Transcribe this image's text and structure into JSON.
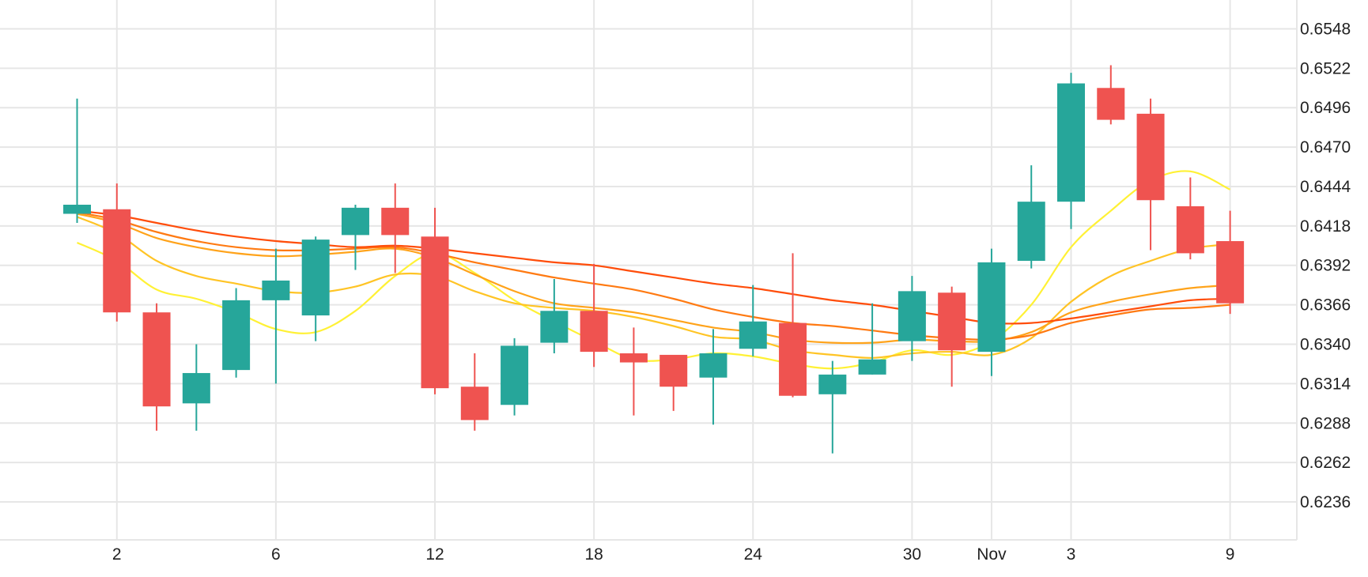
{
  "chart_data": {
    "type": "candlestick",
    "x_ticks": [
      "2",
      "6",
      "12",
      "18",
      "24",
      "30",
      "Nov",
      "3",
      "9"
    ],
    "y_ticks": [
      "0.6548",
      "0.6522",
      "0.6496",
      "0.6470",
      "0.6444",
      "0.6418",
      "0.6392",
      "0.6366",
      "0.6340",
      "0.6314",
      "0.6288",
      "0.6262",
      "0.6236"
    ],
    "ylim": [
      0.6211,
      0.6567
    ],
    "grid": true,
    "colors": {
      "up": "#26a69a",
      "down": "#ef5350",
      "grid": "#e6e6e6"
    },
    "candles": [
      {
        "o": 0.6426,
        "h": 0.6502,
        "l": 0.642,
        "c": 0.6432
      },
      {
        "o": 0.6429,
        "h": 0.6446,
        "l": 0.6355,
        "c": 0.6361
      },
      {
        "o": 0.6361,
        "h": 0.6367,
        "l": 0.6283,
        "c": 0.6299
      },
      {
        "o": 0.6301,
        "h": 0.634,
        "l": 0.6283,
        "c": 0.6321
      },
      {
        "o": 0.6323,
        "h": 0.6377,
        "l": 0.6318,
        "c": 0.6369
      },
      {
        "o": 0.6369,
        "h": 0.6403,
        "l": 0.6314,
        "c": 0.6382
      },
      {
        "o": 0.6359,
        "h": 0.6411,
        "l": 0.6342,
        "c": 0.6409
      },
      {
        "o": 0.6412,
        "h": 0.6432,
        "l": 0.6389,
        "c": 0.643
      },
      {
        "o": 0.643,
        "h": 0.6446,
        "l": 0.6387,
        "c": 0.6412
      },
      {
        "o": 0.6411,
        "h": 0.643,
        "l": 0.6307,
        "c": 0.6311
      },
      {
        "o": 0.6312,
        "h": 0.6334,
        "l": 0.6283,
        "c": 0.629
      },
      {
        "o": 0.63,
        "h": 0.6344,
        "l": 0.6293,
        "c": 0.6339
      },
      {
        "o": 0.6341,
        "h": 0.6383,
        "l": 0.6334,
        "c": 0.6362
      },
      {
        "o": 0.6362,
        "h": 0.6393,
        "l": 0.6325,
        "c": 0.6335
      },
      {
        "o": 0.6334,
        "h": 0.6351,
        "l": 0.6293,
        "c": 0.6328
      },
      {
        "o": 0.6333,
        "h": 0.6333,
        "l": 0.6296,
        "c": 0.6312
      },
      {
        "o": 0.6318,
        "h": 0.635,
        "l": 0.6287,
        "c": 0.6334
      },
      {
        "o": 0.6337,
        "h": 0.6379,
        "l": 0.6332,
        "c": 0.6355
      },
      {
        "o": 0.6354,
        "h": 0.64,
        "l": 0.6305,
        "c": 0.6306
      },
      {
        "o": 0.6307,
        "h": 0.6329,
        "l": 0.6268,
        "c": 0.632
      },
      {
        "o": 0.632,
        "h": 0.6367,
        "l": 0.632,
        "c": 0.633
      },
      {
        "o": 0.6342,
        "h": 0.6385,
        "l": 0.6329,
        "c": 0.6375
      },
      {
        "o": 0.6374,
        "h": 0.6378,
        "l": 0.6312,
        "c": 0.6336
      },
      {
        "o": 0.6335,
        "h": 0.6403,
        "l": 0.6319,
        "c": 0.6394
      },
      {
        "o": 0.6395,
        "h": 0.6458,
        "l": 0.639,
        "c": 0.6434
      },
      {
        "o": 0.6434,
        "h": 0.6519,
        "l": 0.6416,
        "c": 0.6512
      },
      {
        "o": 0.6509,
        "h": 0.6524,
        "l": 0.6485,
        "c": 0.6488
      },
      {
        "o": 0.6492,
        "h": 0.6502,
        "l": 0.6402,
        "c": 0.6435
      },
      {
        "o": 0.6431,
        "h": 0.645,
        "l": 0.6396,
        "c": 0.64
      },
      {
        "o": 0.6408,
        "h": 0.6428,
        "l": 0.636,
        "c": 0.6367
      }
    ],
    "moving_averages": [
      {
        "color": "#fff135",
        "values": [
          0.6407,
          0.6395,
          0.6376,
          0.637,
          0.6361,
          0.635,
          0.6348,
          0.6362,
          0.6385,
          0.64,
          0.6387,
          0.6369,
          0.6355,
          0.6342,
          0.633,
          0.633,
          0.6334,
          0.6332,
          0.6327,
          0.6324,
          0.6328,
          0.6336,
          0.6333,
          0.6342,
          0.6366,
          0.6404,
          0.6428,
          0.6448,
          0.6454,
          0.6442
        ]
      },
      {
        "color": "#ffc425",
        "values": [
          0.6424,
          0.6413,
          0.6395,
          0.6385,
          0.638,
          0.6375,
          0.6374,
          0.6378,
          0.6386,
          0.6385,
          0.6375,
          0.6367,
          0.6364,
          0.6362,
          0.6358,
          0.6352,
          0.6345,
          0.6343,
          0.6336,
          0.6333,
          0.6331,
          0.6334,
          0.6335,
          0.6333,
          0.6344,
          0.6368,
          0.6385,
          0.6395,
          0.6403,
          0.6406
        ]
      },
      {
        "color": "#ffa31a",
        "values": [
          0.6426,
          0.642,
          0.641,
          0.6404,
          0.64,
          0.6398,
          0.6399,
          0.6401,
          0.6403,
          0.6397,
          0.6386,
          0.6375,
          0.6367,
          0.6364,
          0.6361,
          0.6356,
          0.6351,
          0.6348,
          0.6343,
          0.6341,
          0.6341,
          0.6343,
          0.6342,
          0.6342,
          0.6348,
          0.6361,
          0.6368,
          0.6373,
          0.6377,
          0.6379
        ]
      },
      {
        "color": "#ff7a12",
        "values": [
          0.6427,
          0.6422,
          0.6414,
          0.6408,
          0.6404,
          0.6402,
          0.6402,
          0.6403,
          0.6404,
          0.64,
          0.6394,
          0.6389,
          0.6384,
          0.638,
          0.6376,
          0.637,
          0.6363,
          0.6358,
          0.6354,
          0.6352,
          0.6349,
          0.6346,
          0.6344,
          0.6343,
          0.6346,
          0.6354,
          0.6359,
          0.6363,
          0.6364,
          0.6366
        ]
      },
      {
        "color": "#ff4d0a",
        "values": [
          0.6428,
          0.6425,
          0.642,
          0.6415,
          0.6411,
          0.6408,
          0.6406,
          0.6404,
          0.6405,
          0.6403,
          0.64,
          0.6397,
          0.6394,
          0.6392,
          0.6388,
          0.6384,
          0.638,
          0.6377,
          0.6373,
          0.6369,
          0.6366,
          0.6362,
          0.6358,
          0.6354,
          0.6354,
          0.6357,
          0.6361,
          0.6365,
          0.6369,
          0.637
        ]
      }
    ]
  }
}
